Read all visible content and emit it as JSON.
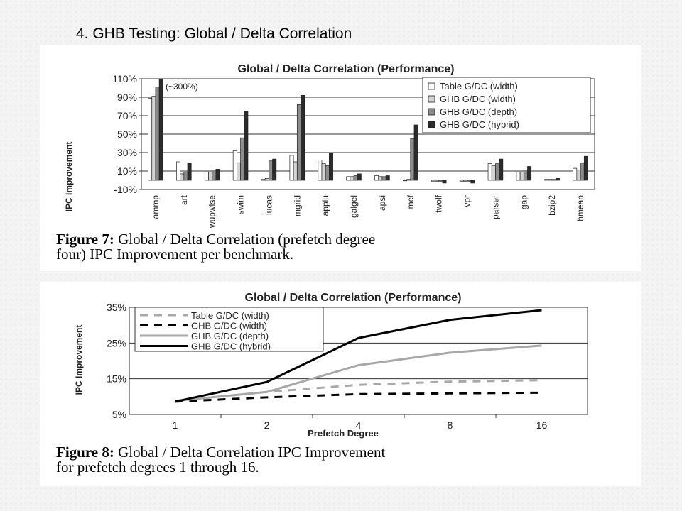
{
  "slide_title": "4. GHB Testing: Global / Delta Correlation",
  "chart_data": [
    {
      "type": "bar",
      "title": "Global / Delta Correlation (Performance)",
      "ylabel": "IPC Improvement",
      "xlabel": "",
      "ylim": [
        -10,
        110
      ],
      "yticks": [
        "-10%",
        "10%",
        "30%",
        "50%",
        "70%",
        "90%",
        "110%"
      ],
      "annotation": "(~300%)",
      "legend_position": "top-right",
      "categories": [
        "ammp",
        "art",
        "wupwise",
        "swim",
        "lucas",
        "mgrid",
        "applu",
        "galgel",
        "apsi",
        "mcf",
        "twolf",
        "vpr",
        "parser",
        "gap",
        "bzip2",
        "hmean"
      ],
      "series": [
        {
          "name": "Table G/DC (width)",
          "fill": "#ffffff",
          "values": [
            89,
            20,
            9,
            32,
            1,
            27,
            22,
            4,
            5,
            0,
            -1,
            -1,
            18,
            9,
            1,
            13
          ]
        },
        {
          "name": "GHB G/DC (width)",
          "fill": "#d4d4d4",
          "values": [
            91,
            7,
            9,
            19,
            2,
            20,
            18,
            4,
            4,
            1,
            -1,
            -1,
            16,
            9,
            1,
            11
          ]
        },
        {
          "name": "GHB G/DC (depth)",
          "fill": "#8c8c8c",
          "values": [
            101,
            9,
            11,
            46,
            21,
            82,
            16,
            5,
            4,
            45,
            -1,
            -1,
            18,
            11,
            1,
            19
          ]
        },
        {
          "name": "GHB G/DC (hybrid)",
          "fill": "#2b2b2b",
          "values": [
            110,
            19,
            12,
            75,
            23,
            92,
            29,
            7,
            5,
            60,
            -3,
            -3,
            23,
            15,
            2,
            26
          ]
        }
      ],
      "caption_bold": "Figure 7:",
      "caption_text": " Global / Delta Correlation (prefetch degree",
      "caption_line2": "four) IPC Improvement per benchmark."
    },
    {
      "type": "line",
      "title": "Global / Delta Correlation (Performance)",
      "xlabel": "Prefetch Degree",
      "ylabel": "IPC Improvement",
      "x": [
        "1",
        "2",
        "4",
        "8",
        "16"
      ],
      "ylim": [
        5,
        35
      ],
      "yticks": [
        "5%",
        "15%",
        "25%",
        "35%"
      ],
      "legend_position": "top-left",
      "series": [
        {
          "name": "Table G/DC (width)",
          "color": "#a8a8a8",
          "dash": "dashed",
          "values": [
            8.8,
            11.3,
            13.3,
            14.2,
            14.6
          ]
        },
        {
          "name": "GHB G/DC (width)",
          "color": "#000000",
          "dash": "dashed",
          "values": [
            8.6,
            9.8,
            10.7,
            10.9,
            11.1
          ]
        },
        {
          "name": "GHB G/DC (depth)",
          "color": "#a8a8a8",
          "dash": "solid",
          "values": [
            8.8,
            11.3,
            18.8,
            22.3,
            24.3
          ]
        },
        {
          "name": "GHB G/DC (hybrid)",
          "color": "#000000",
          "dash": "solid",
          "values": [
            8.6,
            14.1,
            26.4,
            31.5,
            34.2
          ]
        }
      ],
      "caption_bold": "Figure 8:",
      "caption_text": " Global / Delta Correlation IPC Improvement",
      "caption_line2": "for prefetch degrees 1 through 16."
    }
  ]
}
